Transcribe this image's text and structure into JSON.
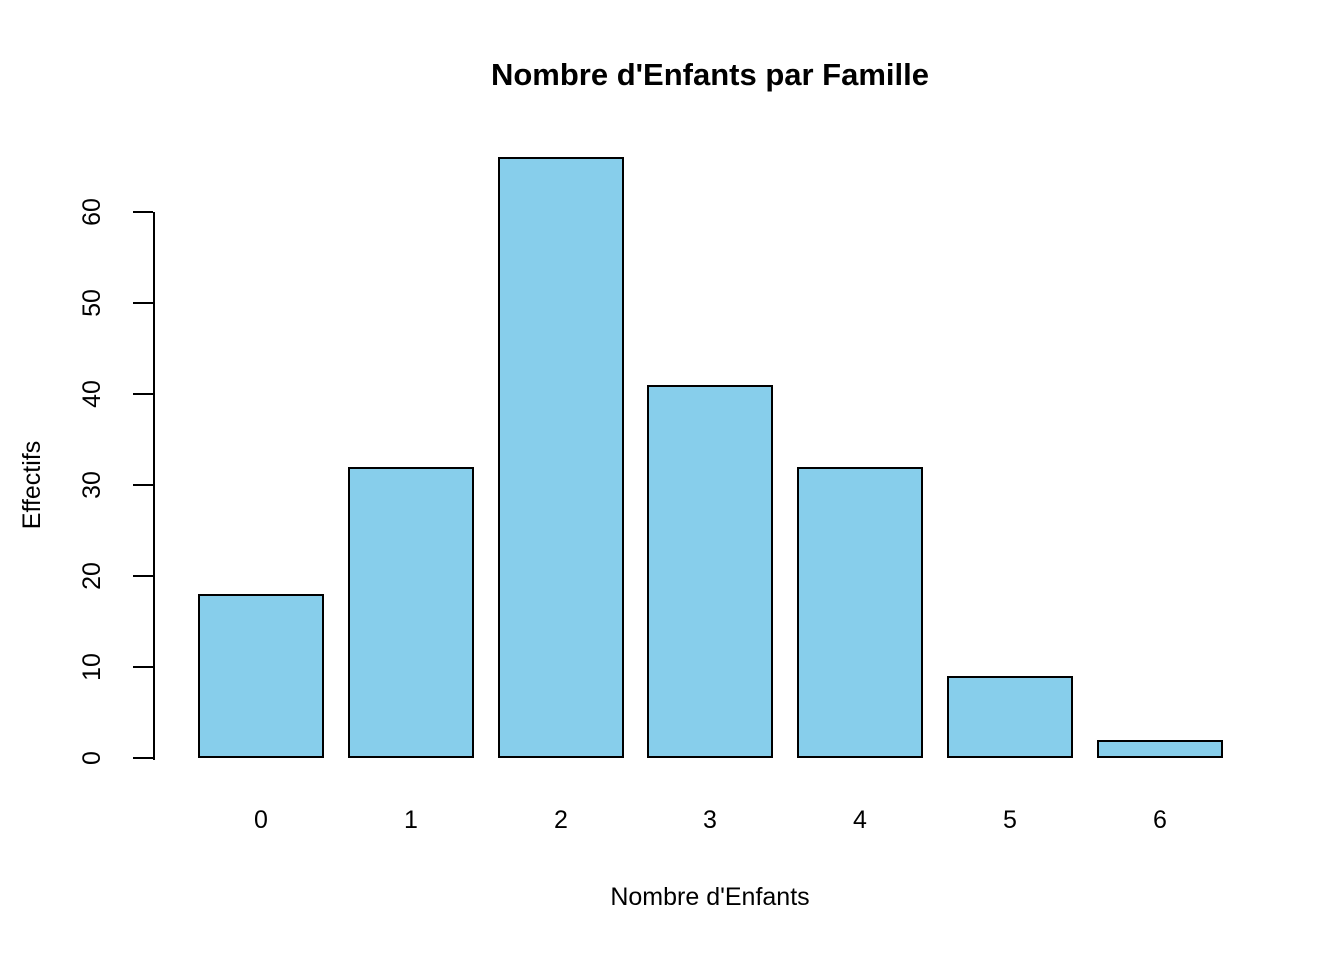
{
  "chart_data": {
    "type": "bar",
    "title": "Nombre d'Enfants par Famille",
    "xlabel": "Nombre d'Enfants",
    "ylabel": "Effectifs",
    "categories": [
      "0",
      "1",
      "2",
      "3",
      "4",
      "5",
      "6"
    ],
    "values": [
      18,
      32,
      66,
      41,
      32,
      9,
      2
    ],
    "ylim": [
      0,
      60
    ],
    "yticks": [
      0,
      10,
      20,
      30,
      40,
      50,
      60
    ],
    "grid": false,
    "legend": null,
    "bar_fill_color": "#87CEEB",
    "bar_border_color": "#000000",
    "axis_color": "#000000",
    "background_color": "#ffffff"
  }
}
